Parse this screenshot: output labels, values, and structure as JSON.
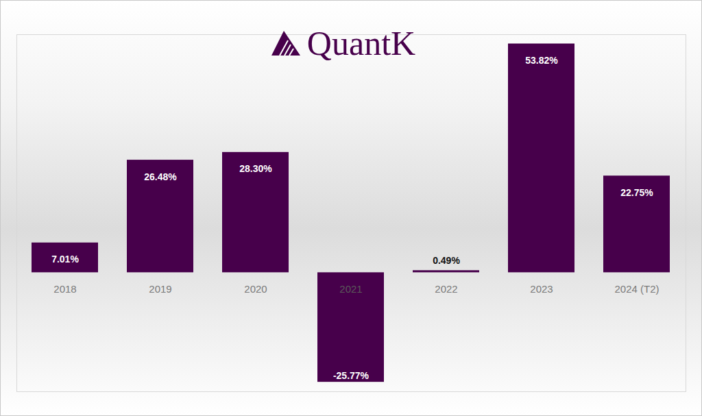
{
  "chart_data": {
    "type": "bar",
    "title": "QuantK",
    "categories": [
      "2018",
      "2019",
      "2020",
      "2021",
      "2022",
      "2023",
      "2024 (T2)"
    ],
    "values": [
      7.01,
      26.48,
      28.3,
      -25.77,
      0.49,
      53.82,
      22.75
    ],
    "value_labels": [
      "7.01%",
      "26.48%",
      "28.30%",
      "-25.77%",
      "0.49%",
      "53.82%",
      "22.75%"
    ],
    "color": "#47004b",
    "ylim": [
      -28,
      56
    ],
    "data_labels": true,
    "tick_labels": "x"
  }
}
